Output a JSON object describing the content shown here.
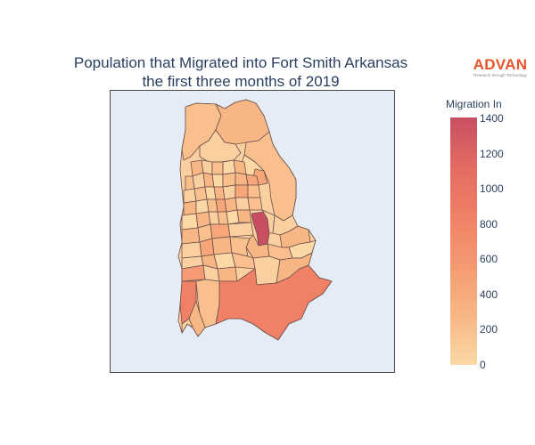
{
  "title": {
    "line1": "Population that Migrated into Fort Smith Arkansas",
    "line2": "the first three months of 2019"
  },
  "logo": {
    "word": "ADVAN",
    "tagline": "Research through Technology",
    "color": "#e8552a"
  },
  "colorbar": {
    "title": "Migration In",
    "ticks": [
      "0",
      "200",
      "400",
      "600",
      "800",
      "1000",
      "1200",
      "1400"
    ],
    "range": [
      0,
      1400
    ],
    "colorscale": [
      "#fbd8a6",
      "#f8b685",
      "#f59a72",
      "#f08066",
      "#e26c62",
      "#c84f62"
    ]
  },
  "map": {
    "background": "#e5ecf6",
    "border_color": "#5c4a4a"
  }
}
